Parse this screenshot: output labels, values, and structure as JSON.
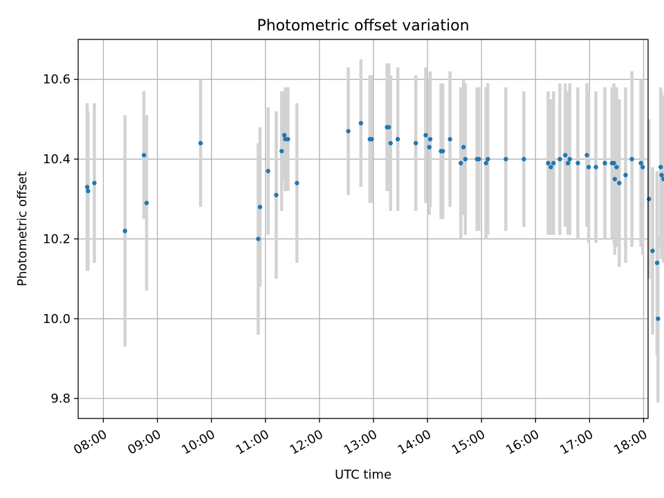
{
  "chart_data": {
    "type": "scatter",
    "title": "Photometric offset variation",
    "xlabel": "UTC time",
    "ylabel": "Photometric offset",
    "x_is_time": true,
    "xlim": [
      "07:32",
      "18:05"
    ],
    "ylim": [
      9.75,
      10.7
    ],
    "x_ticks": [
      "08:00",
      "09:00",
      "10:00",
      "11:00",
      "12:00",
      "13:00",
      "14:00",
      "15:00",
      "16:00",
      "17:00",
      "18:00"
    ],
    "y_ticks": [
      9.8,
      10.0,
      10.2,
      10.4,
      10.6
    ],
    "grid": true,
    "marker_color": "#1f77b4",
    "errorbar_color": "#d3d3d3",
    "series": [
      {
        "x": [
          "07:42",
          "07:43",
          "07:50",
          "08:24",
          "08:45",
          "08:48",
          "09:48",
          "10:52",
          "10:54",
          "11:03",
          "11:12",
          "11:18",
          "11:21",
          "11:22",
          "11:25",
          "11:35",
          "12:32",
          "12:46",
          "12:56",
          "12:57",
          "12:58",
          "13:15",
          "13:17",
          "13:19",
          "13:27",
          "13:47",
          "13:58",
          "14:02",
          "14:03",
          "14:15",
          "14:17",
          "14:25",
          "14:37",
          "14:40",
          "14:42",
          "14:55",
          "14:57",
          "15:05",
          "15:07",
          "15:27",
          "15:47",
          "16:14",
          "16:17",
          "16:20",
          "16:27",
          "16:33",
          "16:36",
          "16:38",
          "16:47",
          "16:57",
          "16:59",
          "17:07",
          "17:17",
          "17:25",
          "17:27",
          "17:28",
          "17:30",
          "17:33",
          "17:40",
          "17:47",
          "17:57",
          "17:59",
          "18:06",
          "18:10",
          "18:15",
          "18:16",
          "18:19",
          "18:20",
          "18:22"
        ],
        "y": [
          10.33,
          10.32,
          10.34,
          10.22,
          10.41,
          10.29,
          10.44,
          10.2,
          10.28,
          10.37,
          10.31,
          10.42,
          10.46,
          10.45,
          10.45,
          10.34,
          10.47,
          10.49,
          10.45,
          10.45,
          10.45,
          10.48,
          10.48,
          10.44,
          10.45,
          10.44,
          10.46,
          10.43,
          10.45,
          10.42,
          10.42,
          10.45,
          10.39,
          10.43,
          10.4,
          10.4,
          10.4,
          10.39,
          10.4,
          10.4,
          10.4,
          10.39,
          10.38,
          10.39,
          10.4,
          10.41,
          10.39,
          10.4,
          10.39,
          10.41,
          10.38,
          10.38,
          10.39,
          10.39,
          10.39,
          10.35,
          10.38,
          10.34,
          10.36,
          10.4,
          10.39,
          10.38,
          10.3,
          10.17,
          10.14,
          10.0,
          10.38,
          10.36,
          10.35
        ],
        "err": [
          0.21,
          0.2,
          0.2,
          0.29,
          0.16,
          0.22,
          0.16,
          0.24,
          0.2,
          0.16,
          0.21,
          0.15,
          0.11,
          0.13,
          0.13,
          0.2,
          0.16,
          0.16,
          0.16,
          0.16,
          0.16,
          0.16,
          0.16,
          0.17,
          0.18,
          0.17,
          0.17,
          0.17,
          0.17,
          0.17,
          0.17,
          0.17,
          0.19,
          0.17,
          0.19,
          0.18,
          0.18,
          0.19,
          0.19,
          0.18,
          0.17,
          0.18,
          0.17,
          0.18,
          0.19,
          0.18,
          0.18,
          0.19,
          0.19,
          0.18,
          0.19,
          0.19,
          0.19,
          0.19,
          0.2,
          0.19,
          0.2,
          0.21,
          0.22,
          0.22,
          0.21,
          0.22,
          0.2,
          0.21,
          0.23,
          0.21,
          0.2,
          0.21,
          0.21
        ]
      }
    ]
  }
}
